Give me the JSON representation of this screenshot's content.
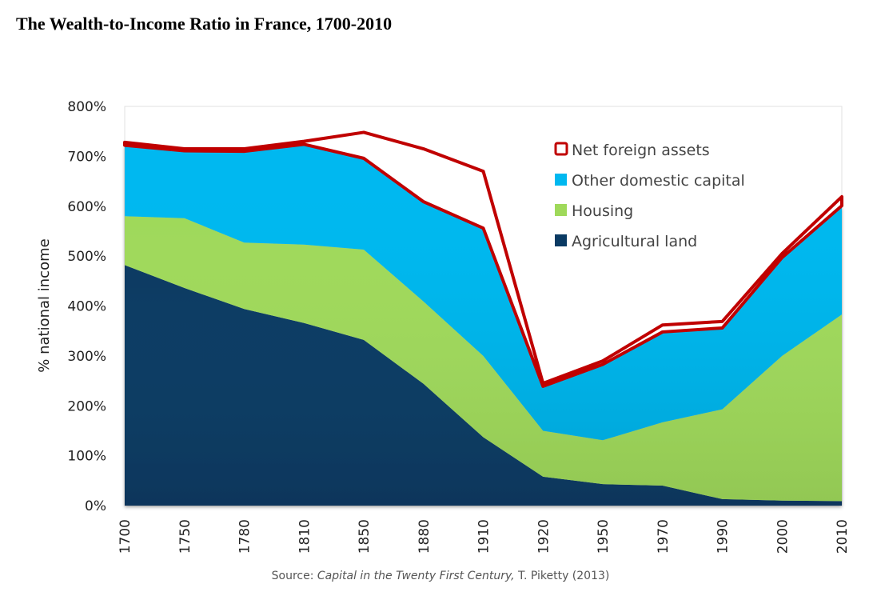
{
  "page_title": "The Wealth-to-Income Ratio in France, 1700-2010",
  "source": {
    "prefix": "Source: ",
    "work": "Capital in the Twenty First Century,",
    "suffix": " T. Piketty (2013)"
  },
  "chart_data": {
    "type": "area",
    "stacked": true,
    "title": "The Wealth-to-Income Ratio in France, 1700-2010",
    "xlabel": "",
    "ylabel": "% national income",
    "ylim": [
      0,
      800
    ],
    "yticks": [
      0,
      100,
      200,
      300,
      400,
      500,
      600,
      700,
      800
    ],
    "ytick_labels": [
      "0%",
      "100%",
      "200%",
      "300%",
      "400%",
      "500%",
      "600%",
      "700%",
      "800%"
    ],
    "categories": [
      "1700",
      "1750",
      "1780",
      "1810",
      "1850",
      "1880",
      "1910",
      "1920",
      "1950",
      "1970",
      "1990",
      "2000",
      "2010"
    ],
    "grid": false,
    "legend_position": "top-right",
    "series": [
      {
        "name": "Agricultural land",
        "color": "#0a3a63",
        "style": "area",
        "values": [
          482,
          436,
          394,
          366,
          332,
          244,
          137,
          58,
          43,
          40,
          13,
          10,
          9
        ]
      },
      {
        "name": "Housing",
        "color": "#9fd95a",
        "style": "area",
        "values": [
          98,
          140,
          133,
          157,
          181,
          165,
          163,
          92,
          88,
          127,
          180,
          290,
          374
        ]
      },
      {
        "name": "Other domestic capital",
        "color": "#00b8f0",
        "style": "area",
        "values": [
          142,
          135,
          183,
          201,
          183,
          200,
          256,
          89,
          152,
          181,
          163,
          197,
          218
        ]
      },
      {
        "name": "Net foreign assets",
        "color": "#c00000",
        "style": "outline",
        "values": [
          6,
          4,
          5,
          6,
          52,
          106,
          114,
          6,
          7,
          14,
          13,
          8,
          18
        ]
      }
    ]
  }
}
